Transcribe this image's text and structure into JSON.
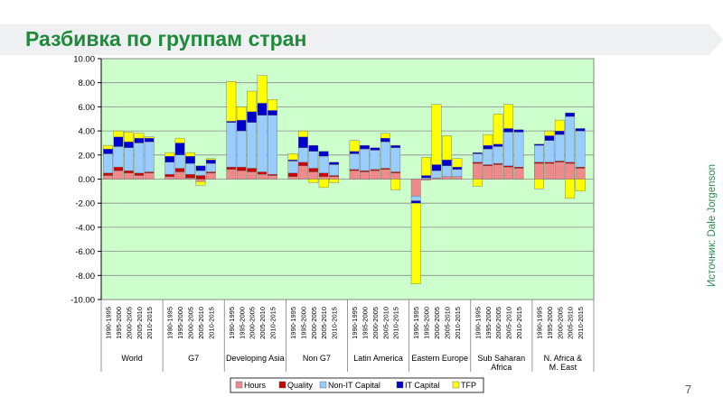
{
  "slide": {
    "title": "Разбивка по группам стран",
    "source": "Источник: Dale Jorgenson",
    "page_number": "7"
  },
  "colors": {
    "title": "#1f8a3a",
    "plot_background": "#ccffcc",
    "Hours": "#f08a8a",
    "Quality": "#cc0000",
    "Non-IT Capital": "#99ccff",
    "IT Capital": "#0000cc",
    "TFP": "#ffff00"
  },
  "chart_data": {
    "type": "bar",
    "stacked": true,
    "ylim": [
      -10,
      10
    ],
    "yticks": [
      "10.00",
      "8.00",
      "6.00",
      "4.00",
      "2.00",
      "0.00",
      "-2.00",
      "-4.00",
      "-6.00",
      "-8.00",
      "-10.00"
    ],
    "grid": true,
    "legend_position": "bottom",
    "series_names": [
      "Hours",
      "Quality",
      "Non-IT Capital",
      "IT Capital",
      "TFP"
    ],
    "groups": [
      {
        "label": "World",
        "bars": [
          {
            "period": "1990-1995",
            "Hours": 0.3,
            "Quality": 0.2,
            "Non-IT Capital": 1.6,
            "IT Capital": 0.4,
            "TFP": 0.3
          },
          {
            "period": "1995-2000",
            "Hours": 0.7,
            "Quality": 0.3,
            "Non-IT Capital": 1.7,
            "IT Capital": 0.8,
            "TFP": 0.5
          },
          {
            "period": "2000-2005",
            "Hours": 0.5,
            "Quality": 0.2,
            "Non-IT Capital": 1.9,
            "IT Capital": 0.5,
            "TFP": 0.8
          },
          {
            "period": "2005-2010",
            "Hours": 0.3,
            "Quality": 0.2,
            "Non-IT Capital": 2.5,
            "IT Capital": 0.4,
            "TFP": 0.4
          },
          {
            "period": "2010-2015",
            "Hours": 0.5,
            "Quality": 0.1,
            "Non-IT Capital": 2.5,
            "IT Capital": 0.3,
            "TFP": 0.1
          }
        ]
      },
      {
        "label": "G7",
        "bars": [
          {
            "period": "1990-1995",
            "Hours": 0.2,
            "Quality": 0.2,
            "Non-IT Capital": 1.0,
            "IT Capital": 0.5,
            "TFP": 0.3
          },
          {
            "period": "1995-2000",
            "Hours": 0.6,
            "Quality": 0.3,
            "Non-IT Capital": 1.1,
            "IT Capital": 1.0,
            "TFP": 0.4
          },
          {
            "period": "2000-2005",
            "Hours": 0.1,
            "Quality": 0.3,
            "Non-IT Capital": 0.9,
            "IT Capital": 0.6,
            "TFP": 0.3
          },
          {
            "period": "2005-2010",
            "Hours": -0.2,
            "Quality": 0.3,
            "Non-IT Capital": 0.4,
            "IT Capital": 0.4,
            "TFP": -0.3
          },
          {
            "period": "2010-2015",
            "Hours": 0.5,
            "Quality": 0.1,
            "Non-IT Capital": 0.7,
            "IT Capital": 0.3,
            "TFP": 0.1
          }
        ]
      },
      {
        "label": "Developing Asia",
        "bars": [
          {
            "period": "1990-1995",
            "Hours": 0.8,
            "Quality": 0.2,
            "Non-IT Capital": 3.7,
            "IT Capital": 0.1,
            "TFP": 3.3
          },
          {
            "period": "1995-2000",
            "Hours": 0.7,
            "Quality": 0.3,
            "Non-IT Capital": 3.0,
            "IT Capital": 0.9,
            "TFP": 1.1
          },
          {
            "period": "2000-2005",
            "Hours": 0.6,
            "Quality": 0.3,
            "Non-IT Capital": 3.8,
            "IT Capital": 0.9,
            "TFP": 1.7
          },
          {
            "period": "2005-2010",
            "Hours": 0.4,
            "Quality": 0.2,
            "Non-IT Capital": 4.7,
            "IT Capital": 1.0,
            "TFP": 2.3
          },
          {
            "period": "2010-2015",
            "Hours": 0.3,
            "Quality": 0.1,
            "Non-IT Capital": 4.9,
            "IT Capital": 0.4,
            "TFP": 0.9
          }
        ]
      },
      {
        "label": "Non G7",
        "bars": [
          {
            "period": "1990-1995",
            "Hours": 0.2,
            "Quality": 0.3,
            "Non-IT Capital": 1.0,
            "IT Capital": 0.1,
            "TFP": 0.5
          },
          {
            "period": "1995-2000",
            "Hours": 1.1,
            "Quality": 0.3,
            "Non-IT Capital": 1.2,
            "IT Capital": 0.9,
            "TFP": 0.5
          },
          {
            "period": "2000-2005",
            "Hours": 0.6,
            "Quality": 0.3,
            "Non-IT Capital": 1.4,
            "IT Capital": 0.5,
            "TFP": -0.3
          },
          {
            "period": "2005-2010",
            "Hours": 0.2,
            "Quality": 0.3,
            "Non-IT Capital": 1.4,
            "IT Capital": 0.4,
            "TFP": -0.7
          },
          {
            "period": "2010-2015",
            "Hours": 0.2,
            "Quality": 0.1,
            "Non-IT Capital": 0.9,
            "IT Capital": 0.2,
            "TFP": -0.3
          }
        ]
      },
      {
        "label": "Latin America",
        "bars": [
          {
            "period": "1990-1995",
            "Hours": 0.7,
            "Quality": 0.1,
            "Non-IT Capital": 1.3,
            "IT Capital": 0.2,
            "TFP": 0.9
          },
          {
            "period": "1995-2000",
            "Hours": 0.6,
            "Quality": 0.1,
            "Non-IT Capital": 1.8,
            "IT Capital": 0.3,
            "TFP": 0.0
          },
          {
            "period": "2000-2005",
            "Hours": 0.7,
            "Quality": 0.1,
            "Non-IT Capital": 1.6,
            "IT Capital": 0.2,
            "TFP": 0.0
          },
          {
            "period": "2005-2010",
            "Hours": 0.8,
            "Quality": 0.1,
            "Non-IT Capital": 2.2,
            "IT Capital": 0.3,
            "TFP": 0.4
          },
          {
            "period": "2010-2015",
            "Hours": 0.5,
            "Quality": 0.1,
            "Non-IT Capital": 2.0,
            "IT Capital": 0.2,
            "TFP": -0.9
          }
        ]
      },
      {
        "label": "Eastern Europe",
        "bars": [
          {
            "period": "1990-1995",
            "Hours": -1.4,
            "Quality": 0.0,
            "Non-IT Capital": -0.4,
            "IT Capital": -0.2,
            "TFP": -6.7
          },
          {
            "period": "1995-2000",
            "Hours": -0.1,
            "Quality": 0.0,
            "Non-IT Capital": 0.1,
            "IT Capital": 0.2,
            "TFP": 1.5
          },
          {
            "period": "2000-2005",
            "Hours": 0.1,
            "Quality": 0.0,
            "Non-IT Capital": 0.6,
            "IT Capital": 0.5,
            "TFP": 5.0
          },
          {
            "period": "2005-2010",
            "Hours": 0.2,
            "Quality": 0.0,
            "Non-IT Capital": 0.9,
            "IT Capital": 0.5,
            "TFP": 2.0
          },
          {
            "period": "2010-2015",
            "Hours": 0.2,
            "Quality": 0.0,
            "Non-IT Capital": 0.6,
            "IT Capital": 0.2,
            "TFP": 0.7
          }
        ]
      },
      {
        "label": "Sub Saharan Africa",
        "bars": [
          {
            "period": "1990-1995",
            "Hours": 1.3,
            "Quality": 0.1,
            "Non-IT Capital": 0.7,
            "IT Capital": 0.1,
            "TFP": -0.6
          },
          {
            "period": "1995-2000",
            "Hours": 1.1,
            "Quality": 0.1,
            "Non-IT Capital": 1.3,
            "IT Capital": 0.3,
            "TFP": 0.9
          },
          {
            "period": "2000-2005",
            "Hours": 1.2,
            "Quality": 0.1,
            "Non-IT Capital": 1.4,
            "IT Capital": 0.2,
            "TFP": 2.5
          },
          {
            "period": "2005-2010",
            "Hours": 1.0,
            "Quality": 0.1,
            "Non-IT Capital": 2.8,
            "IT Capital": 0.3,
            "TFP": 2.0
          },
          {
            "period": "2010-2015",
            "Hours": 0.9,
            "Quality": 0.1,
            "Non-IT Capital": 2.9,
            "IT Capital": 0.2,
            "TFP": 0.0
          }
        ]
      },
      {
        "label": "N. Africa & M. East",
        "bars": [
          {
            "period": "1990-1995",
            "Hours": 1.3,
            "Quality": 0.1,
            "Non-IT Capital": 1.4,
            "IT Capital": 0.1,
            "TFP": -0.8
          },
          {
            "period": "1995-2000",
            "Hours": 1.3,
            "Quality": 0.1,
            "Non-IT Capital": 1.8,
            "IT Capital": 0.4,
            "TFP": 0.4
          },
          {
            "period": "2000-2005",
            "Hours": 1.4,
            "Quality": 0.1,
            "Non-IT Capital": 2.2,
            "IT Capital": 0.3,
            "TFP": 0.9
          },
          {
            "period": "2005-2010",
            "Hours": 1.3,
            "Quality": 0.1,
            "Non-IT Capital": 3.8,
            "IT Capital": 0.3,
            "TFP": -1.6
          },
          {
            "period": "2010-2015",
            "Hours": 0.9,
            "Quality": 0.1,
            "Non-IT Capital": 3.0,
            "IT Capital": 0.2,
            "TFP": -1.0
          }
        ]
      }
    ]
  }
}
